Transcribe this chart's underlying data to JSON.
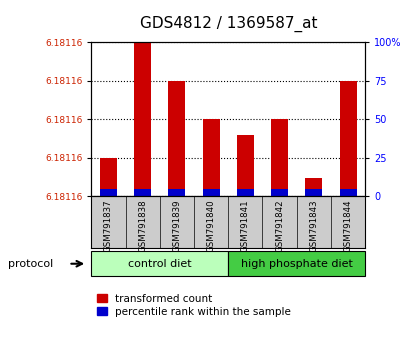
{
  "title": "GDS4812 / 1369587_at",
  "samples": [
    "GSM791837",
    "GSM791838",
    "GSM791839",
    "GSM791840",
    "GSM791841",
    "GSM791842",
    "GSM791843",
    "GSM791844"
  ],
  "red_bar_heights": [
    25,
    100,
    75,
    50,
    40,
    50,
    12,
    75
  ],
  "blue_bar_heights": [
    5,
    5,
    5,
    5,
    5,
    5,
    5,
    5
  ],
  "ytick_labels": [
    "6.18116",
    "6.18116",
    "6.18116",
    "6.18116",
    "6.18116"
  ],
  "ytick_positions": [
    0,
    25,
    50,
    75,
    100
  ],
  "right_ytick_labels": [
    "0",
    "25",
    "50",
    "75",
    "100%"
  ],
  "right_ytick_positions": [
    0,
    25,
    50,
    75,
    100
  ],
  "groups": [
    {
      "label": "control diet",
      "start": 0,
      "end": 4,
      "color": "#bbffbb"
    },
    {
      "label": "high phosphate diet",
      "start": 4,
      "end": 8,
      "color": "#44cc44"
    }
  ],
  "protocol_label": "protocol",
  "legend_red_label": "transformed count",
  "legend_blue_label": "percentile rank within the sample",
  "bar_color_red": "#cc0000",
  "bar_color_blue": "#0000cc",
  "title_fontsize": 11,
  "background_plot": "#ffffff",
  "background_sample": "#cccccc",
  "ylim": [
    0,
    100
  ]
}
